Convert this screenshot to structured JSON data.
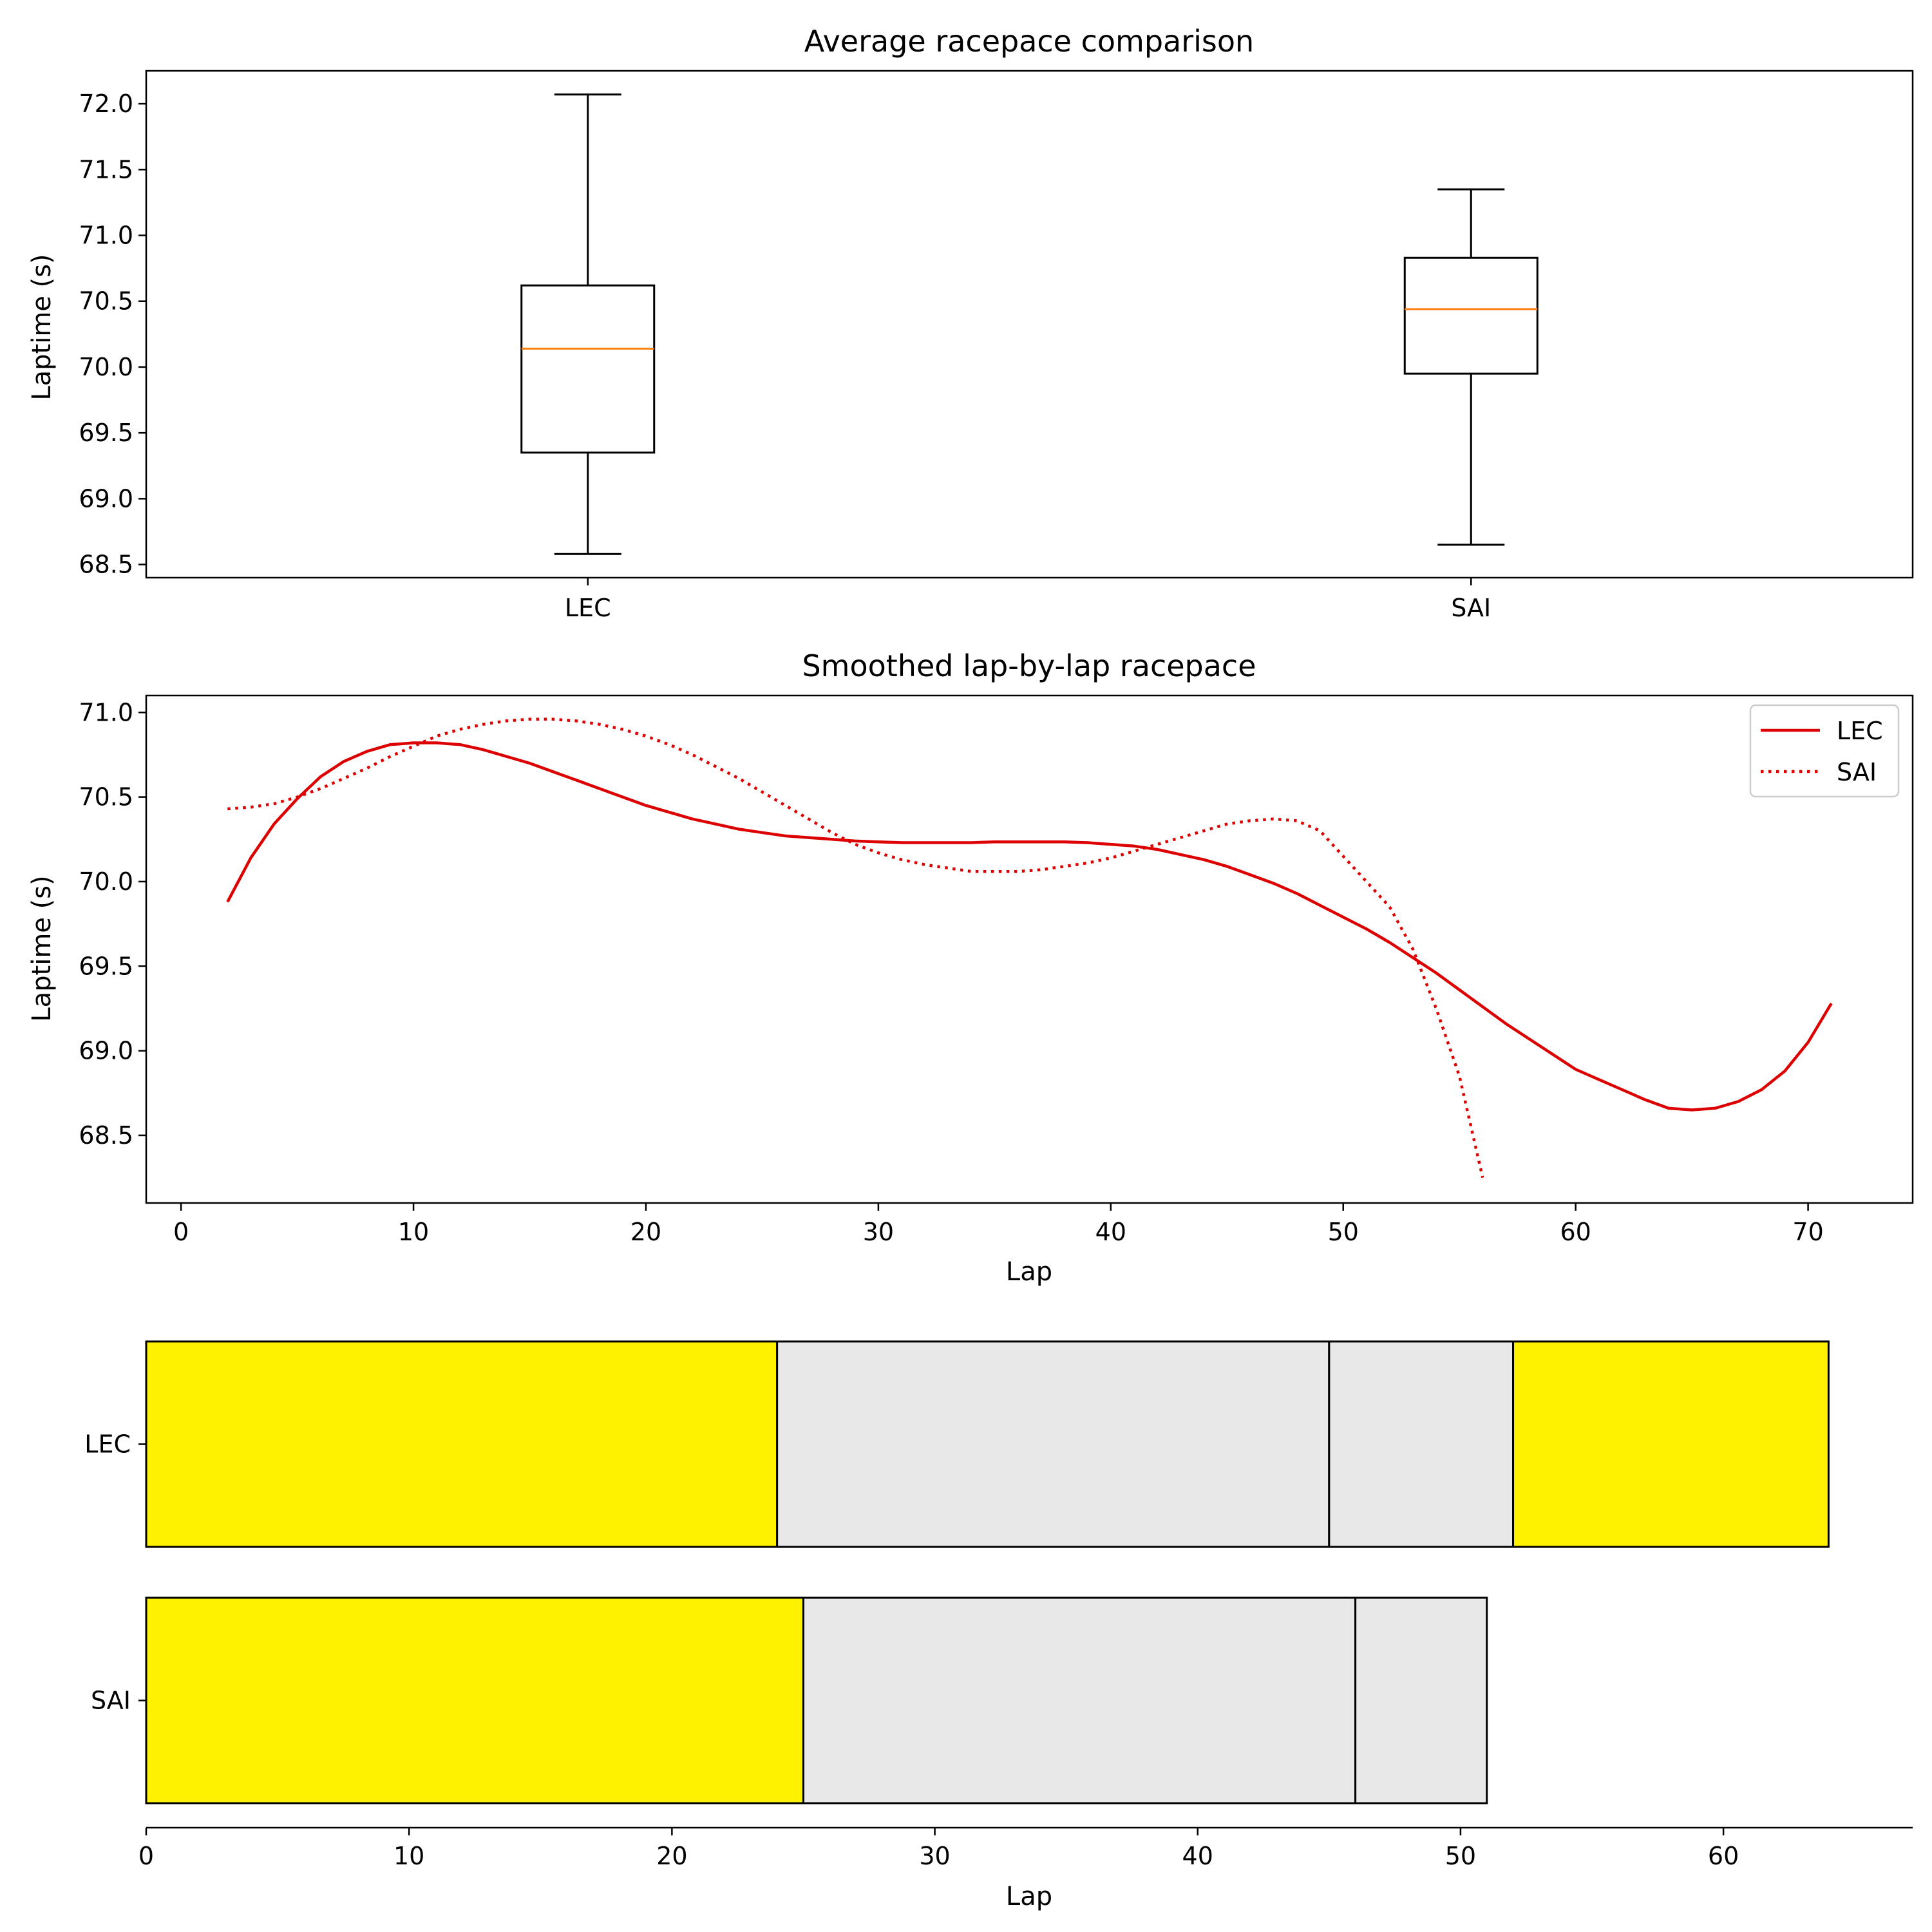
{
  "colors": {
    "box_edge": "#000000",
    "median": "#ff7f0e",
    "line_red": "#dd0000",
    "stint_hard": "#e8e8e8",
    "stint_medium": "#fff200",
    "legend_border": "#cccccc"
  },
  "chart_data": [
    {
      "type": "box",
      "title": "Average racepace comparison",
      "ylabel": "Laptime (s)",
      "xlabel": "",
      "ylim": [
        68.4,
        72.25
      ],
      "yticks": [
        68.5,
        69.0,
        69.5,
        70.0,
        70.5,
        71.0,
        71.5,
        72.0
      ],
      "ytick_labels": [
        "68.5",
        "69.0",
        "69.5",
        "70.0",
        "70.5",
        "71.0",
        "71.5",
        "72.0"
      ],
      "categories": [
        "LEC",
        "SAI"
      ],
      "boxes": [
        {
          "name": "LEC",
          "whisker_low": 68.58,
          "q1": 69.35,
          "median": 70.14,
          "q3": 70.62,
          "whisker_high": 72.07
        },
        {
          "name": "SAI",
          "whisker_low": 68.65,
          "q1": 69.95,
          "median": 70.44,
          "q3": 70.83,
          "whisker_high": 71.35
        }
      ]
    },
    {
      "type": "line",
      "title": "Smoothed lap-by-lap racepace",
      "xlabel": "Lap",
      "ylabel": "Laptime (s)",
      "xlim": [
        -1.5,
        74.5
      ],
      "ylim": [
        68.1,
        71.1
      ],
      "xticks": [
        0,
        10,
        20,
        30,
        40,
        50,
        60,
        70
      ],
      "xtick_labels": [
        "0",
        "10",
        "20",
        "30",
        "40",
        "50",
        "60",
        "70"
      ],
      "yticks": [
        68.5,
        69.0,
        69.5,
        70.0,
        70.5,
        71.0
      ],
      "ytick_labels": [
        "68.5",
        "69.0",
        "69.5",
        "70.0",
        "70.5",
        "71.0"
      ],
      "legend": {
        "position": "top-right",
        "entries": [
          "LEC",
          "SAI"
        ]
      },
      "series": [
        {
          "name": "LEC",
          "style": "solid",
          "x": [
            2,
            3,
            4,
            5,
            6,
            7,
            8,
            9,
            10,
            11,
            12,
            13,
            14,
            15,
            16,
            17,
            18,
            19,
            20,
            21,
            22,
            23,
            24,
            25,
            26,
            27,
            28,
            29,
            30,
            31,
            32,
            33,
            34,
            35,
            36,
            37,
            38,
            39,
            40,
            41,
            42,
            43,
            44,
            45,
            46,
            47,
            48,
            49,
            50,
            51,
            52,
            53,
            54,
            55,
            56,
            57,
            58,
            59,
            60,
            61,
            62,
            63,
            64,
            65,
            66,
            67,
            68,
            69,
            70,
            71
          ],
          "y": [
            69.88,
            70.14,
            70.34,
            70.49,
            70.62,
            70.71,
            70.77,
            70.81,
            70.82,
            70.82,
            70.81,
            70.78,
            70.74,
            70.7,
            70.65,
            70.6,
            70.55,
            70.5,
            70.45,
            70.41,
            70.37,
            70.34,
            70.31,
            70.29,
            70.27,
            70.26,
            70.25,
            70.24,
            70.235,
            70.23,
            70.23,
            70.23,
            70.23,
            70.235,
            70.235,
            70.235,
            70.235,
            70.23,
            70.22,
            70.21,
            70.19,
            70.16,
            70.13,
            70.09,
            70.04,
            69.99,
            69.93,
            69.86,
            69.79,
            69.72,
            69.64,
            69.55,
            69.46,
            69.36,
            69.26,
            69.16,
            69.07,
            68.98,
            68.89,
            68.83,
            68.77,
            68.71,
            68.66,
            68.65,
            68.66,
            68.7,
            68.77,
            68.88,
            69.05,
            69.28
          ]
        },
        {
          "name": "SAI",
          "style": "dotted",
          "x": [
            2,
            3,
            4,
            5,
            6,
            7,
            8,
            9,
            10,
            11,
            12,
            13,
            14,
            15,
            16,
            17,
            18,
            19,
            20,
            21,
            22,
            23,
            24,
            25,
            26,
            27,
            28,
            29,
            30,
            31,
            32,
            33,
            34,
            35,
            36,
            37,
            38,
            39,
            40,
            41,
            42,
            43,
            44,
            45,
            46,
            47,
            48,
            49,
            50,
            51,
            52,
            53,
            54,
            55,
            56
          ],
          "y": [
            70.43,
            70.44,
            70.46,
            70.5,
            70.55,
            70.61,
            70.67,
            70.74,
            70.8,
            70.86,
            70.9,
            70.93,
            70.95,
            70.96,
            70.96,
            70.95,
            70.93,
            70.9,
            70.86,
            70.81,
            70.75,
            70.68,
            70.61,
            70.53,
            70.45,
            70.37,
            70.29,
            70.22,
            70.17,
            70.13,
            70.1,
            70.08,
            70.06,
            70.06,
            70.06,
            70.07,
            70.09,
            70.11,
            70.14,
            70.18,
            70.22,
            70.26,
            70.3,
            70.34,
            70.36,
            70.37,
            70.36,
            70.3,
            70.15,
            70.0,
            69.85,
            69.6,
            69.25,
            68.85,
            68.25
          ]
        }
      ]
    },
    {
      "type": "bar",
      "orientation": "horizontal",
      "title": "",
      "xlabel": "Lap",
      "ylabel": "",
      "xlim": [
        0,
        67.2
      ],
      "xticks": [
        0,
        10,
        20,
        30,
        40,
        50,
        60
      ],
      "xtick_labels": [
        "0",
        "10",
        "20",
        "30",
        "40",
        "50",
        "60"
      ],
      "categories": [
        "LEC",
        "SAI"
      ],
      "stints": [
        {
          "driver": "LEC",
          "segments": [
            {
              "start": 0,
              "end": 24,
              "compound": "MEDIUM"
            },
            {
              "start": 24,
              "end": 45,
              "compound": "HARD"
            },
            {
              "start": 45,
              "end": 52,
              "compound": "HARD"
            },
            {
              "start": 52,
              "end": 64,
              "compound": "MEDIUM"
            }
          ]
        },
        {
          "driver": "SAI",
          "segments": [
            {
              "start": 0,
              "end": 25,
              "compound": "MEDIUM"
            },
            {
              "start": 25,
              "end": 46,
              "compound": "HARD"
            },
            {
              "start": 46,
              "end": 51,
              "compound": "HARD"
            }
          ]
        }
      ]
    }
  ]
}
